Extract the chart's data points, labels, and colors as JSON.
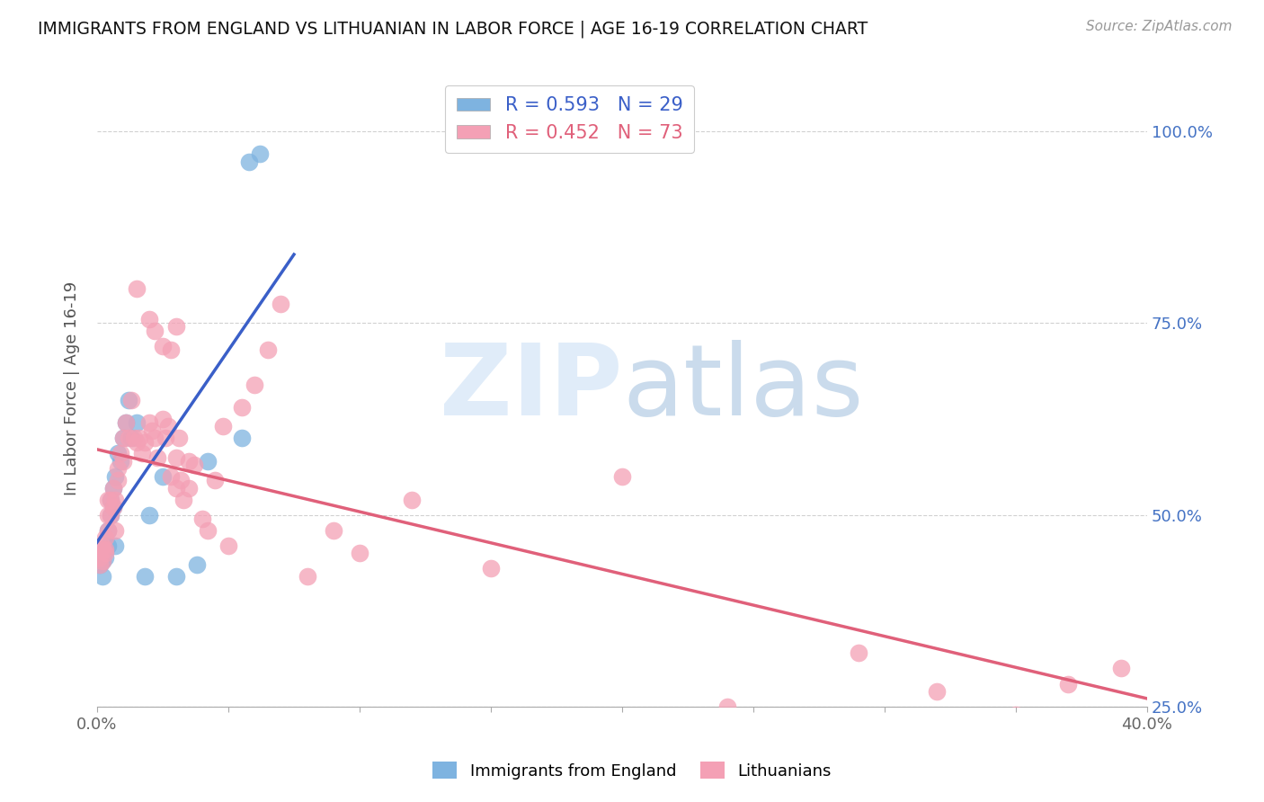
{
  "title": "IMMIGRANTS FROM ENGLAND VS LITHUANIAN IN LABOR FORCE | AGE 16-19 CORRELATION CHART",
  "source": "Source: ZipAtlas.com",
  "ylabel": "In Labor Force | Age 16-19",
  "xlim": [
    0.0,
    0.4
  ],
  "ylim": [
    0.3,
    1.08
  ],
  "ytick_vals": [
    0.25,
    0.5,
    0.75,
    1.0
  ],
  "ytick_labels": [
    "25.0%",
    "50.0%",
    "75.0%",
    "100.0%"
  ],
  "xtick_vals": [
    0.0,
    0.05,
    0.1,
    0.15,
    0.2,
    0.25,
    0.3,
    0.35,
    0.4
  ],
  "xtick_labels": [
    "0.0%",
    "",
    "",
    "",
    "",
    "",
    "",
    "",
    "40.0%"
  ],
  "england_R": 0.593,
  "england_N": 29,
  "lithuanian_R": 0.452,
  "lithuanian_N": 73,
  "england_color": "#7eb3e0",
  "lithuanian_color": "#f4a0b5",
  "england_line_color": "#3a5fc8",
  "lithuanian_line_color": "#e0607a",
  "eng_x": [
    0.001,
    0.002,
    0.002,
    0.003,
    0.003,
    0.004,
    0.004,
    0.005,
    0.005,
    0.006,
    0.006,
    0.007,
    0.007,
    0.008,
    0.009,
    0.01,
    0.011,
    0.012,
    0.013,
    0.015,
    0.018,
    0.02,
    0.025,
    0.03,
    0.038,
    0.042,
    0.055,
    0.058,
    0.062
  ],
  "eng_y": [
    0.435,
    0.44,
    0.42,
    0.445,
    0.455,
    0.46,
    0.48,
    0.5,
    0.52,
    0.51,
    0.535,
    0.55,
    0.46,
    0.58,
    0.57,
    0.6,
    0.62,
    0.65,
    0.6,
    0.62,
    0.42,
    0.5,
    0.55,
    0.42,
    0.435,
    0.57,
    0.6,
    0.96,
    0.97
  ],
  "lith_x": [
    0.001,
    0.001,
    0.002,
    0.002,
    0.002,
    0.003,
    0.003,
    0.003,
    0.004,
    0.004,
    0.004,
    0.005,
    0.005,
    0.006,
    0.006,
    0.007,
    0.007,
    0.008,
    0.008,
    0.009,
    0.01,
    0.01,
    0.011,
    0.012,
    0.013,
    0.014,
    0.015,
    0.016,
    0.017,
    0.018,
    0.02,
    0.021,
    0.022,
    0.023,
    0.025,
    0.026,
    0.027,
    0.028,
    0.03,
    0.031,
    0.033,
    0.035,
    0.037,
    0.04,
    0.042,
    0.045,
    0.048,
    0.05,
    0.055,
    0.06,
    0.065,
    0.07,
    0.08,
    0.09,
    0.1,
    0.12,
    0.15,
    0.2,
    0.24,
    0.29,
    0.32,
    0.35,
    0.37,
    0.39,
    0.015,
    0.02,
    0.022,
    0.025,
    0.028,
    0.03,
    0.03,
    0.032,
    0.035
  ],
  "lith_y": [
    0.435,
    0.445,
    0.44,
    0.46,
    0.455,
    0.45,
    0.47,
    0.455,
    0.5,
    0.48,
    0.52,
    0.5,
    0.52,
    0.51,
    0.535,
    0.52,
    0.48,
    0.545,
    0.56,
    0.58,
    0.57,
    0.6,
    0.62,
    0.6,
    0.65,
    0.6,
    0.595,
    0.6,
    0.58,
    0.595,
    0.62,
    0.61,
    0.6,
    0.575,
    0.625,
    0.6,
    0.615,
    0.55,
    0.575,
    0.6,
    0.52,
    0.535,
    0.565,
    0.495,
    0.48,
    0.545,
    0.615,
    0.46,
    0.64,
    0.67,
    0.715,
    0.775,
    0.42,
    0.48,
    0.45,
    0.52,
    0.43,
    0.55,
    0.25,
    0.32,
    0.27,
    0.24,
    0.28,
    0.3,
    0.795,
    0.755,
    0.74,
    0.72,
    0.715,
    0.745,
    0.535,
    0.545,
    0.57
  ]
}
